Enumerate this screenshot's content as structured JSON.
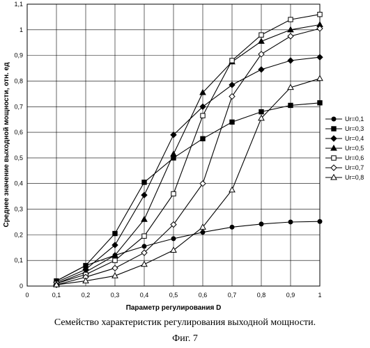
{
  "caption": "Семейство характеристик регулирования выходной мощности.",
  "figure_label": "Фиг. 7",
  "chart_data": {
    "type": "line",
    "title": "",
    "xlabel": "Параметр регулирования D",
    "ylabel": "Среднее значение выходной мощности, отн. ед",
    "xlim": [
      0,
      1
    ],
    "ylim": [
      0,
      1.1
    ],
    "x_ticks": [
      "0",
      "0,1",
      "0,2",
      "0,3",
      "0,4",
      "0,5",
      "0,6",
      "0,7",
      "0,8",
      "0,9",
      "1"
    ],
    "y_ticks": [
      "0",
      "0,1",
      "0,2",
      "0,3",
      "0,4",
      "0,5",
      "0,6",
      "0,7",
      "0,8",
      "0,9",
      "1",
      "1,1"
    ],
    "grid": true,
    "legend_position": "right",
    "x": [
      0.1,
      0.2,
      0.3,
      0.4,
      0.5,
      0.6,
      0.7,
      0.8,
      0.9,
      1.0
    ],
    "series": [
      {
        "name": "Ur=0,1",
        "marker": "circle-filled",
        "values": [
          0.02,
          0.08,
          0.12,
          0.155,
          0.185,
          0.21,
          0.23,
          0.242,
          0.25,
          0.252
        ]
      },
      {
        "name": "Ur=0,3",
        "marker": "square-filled",
        "values": [
          0.02,
          0.08,
          0.205,
          0.405,
          0.5,
          0.575,
          0.64,
          0.68,
          0.705,
          0.715
        ]
      },
      {
        "name": "Ur=0,4",
        "marker": "diamond-filled",
        "values": [
          0.015,
          0.065,
          0.16,
          0.355,
          0.59,
          0.7,
          0.785,
          0.845,
          0.88,
          0.893
        ]
      },
      {
        "name": "Ur=0,5",
        "marker": "triangle-filled",
        "values": [
          0.01,
          0.055,
          0.12,
          0.26,
          0.515,
          0.755,
          0.875,
          0.955,
          1.0,
          1.02
        ]
      },
      {
        "name": "Ur=0,6",
        "marker": "square-open",
        "values": [
          0.01,
          0.045,
          0.1,
          0.195,
          0.36,
          0.665,
          0.88,
          0.98,
          1.04,
          1.06
        ]
      },
      {
        "name": "Ur=0,7",
        "marker": "diamond-open",
        "values": [
          0.005,
          0.035,
          0.07,
          0.13,
          0.24,
          0.4,
          0.74,
          0.905,
          0.975,
          1.005
        ]
      },
      {
        "name": "Ur=0,8",
        "marker": "triangle-open",
        "values": [
          0.005,
          0.02,
          0.04,
          0.085,
          0.14,
          0.23,
          0.375,
          0.655,
          0.775,
          0.81
        ]
      }
    ]
  }
}
